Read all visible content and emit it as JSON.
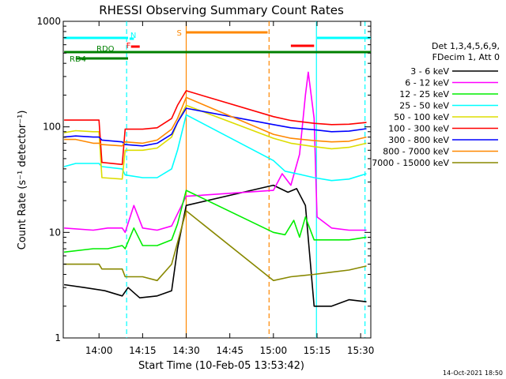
{
  "chart_data": {
    "type": "line",
    "title": "RHESSI Observing Summary Count Rates",
    "xlabel": "Start Time (10-Feb-05 13:53:42)",
    "ylabel": "Count Rate (s⁻¹ detector⁻¹)",
    "x_ticks": [
      "14:00",
      "14:15",
      "14:30",
      "14:45",
      "15:00",
      "15:15",
      "15:30"
    ],
    "x_tick_minutes": [
      366,
      381,
      396,
      411,
      426,
      441,
      456
    ],
    "xlim_minutes": [
      353.7,
      459.5
    ],
    "y_ticks": [
      "1",
      "10",
      "100",
      "1000"
    ],
    "ylim": [
      1,
      1000
    ],
    "yscale": "log",
    "legend_header": [
      "Det 1,3,4,5,6,9,",
      "FDecim 1, Att 0"
    ],
    "timestamp": "14-Oct-2021 18:50",
    "legend_position": "right",
    "series": [
      {
        "name": "3 - 6 keV",
        "color": "#000000",
        "points": [
          [
            354,
            3.2
          ],
          [
            361,
            3.0
          ],
          [
            368,
            2.8
          ],
          [
            374,
            2.5
          ],
          [
            376,
            3.0
          ],
          [
            380,
            2.4
          ],
          [
            386,
            2.5
          ],
          [
            391,
            2.8
          ],
          [
            393,
            7
          ],
          [
            396,
            18
          ],
          [
            426,
            28
          ],
          [
            431,
            24
          ],
          [
            434,
            26
          ],
          [
            437,
            18
          ],
          [
            440,
            2.0
          ],
          [
            446,
            2.0
          ],
          [
            452,
            2.3
          ],
          [
            458,
            2.2
          ]
        ]
      },
      {
        "name": "6 - 12 keV",
        "color": "#ff00ff",
        "points": [
          [
            354,
            11
          ],
          [
            364,
            10.5
          ],
          [
            369,
            11
          ],
          [
            374,
            11
          ],
          [
            375,
            10
          ],
          [
            378,
            18
          ],
          [
            381,
            11
          ],
          [
            386,
            10.5
          ],
          [
            391,
            11.5
          ],
          [
            393,
            15
          ],
          [
            396,
            22
          ],
          [
            426,
            25
          ],
          [
            429,
            36
          ],
          [
            432,
            28
          ],
          [
            435,
            55
          ],
          [
            437,
            200
          ],
          [
            438,
            330
          ],
          [
            440,
            120
          ],
          [
            441,
            14
          ],
          [
            446,
            11
          ],
          [
            452,
            10.5
          ],
          [
            458,
            10.5
          ]
        ]
      },
      {
        "name": "12 - 25 keV",
        "color": "#00ee00",
        "points": [
          [
            354,
            6.5
          ],
          [
            364,
            7
          ],
          [
            369,
            7
          ],
          [
            374,
            7.5
          ],
          [
            375,
            7
          ],
          [
            378,
            11
          ],
          [
            381,
            7.5
          ],
          [
            386,
            7.5
          ],
          [
            391,
            8.5
          ],
          [
            393,
            12
          ],
          [
            396,
            25
          ],
          [
            426,
            10
          ],
          [
            430,
            9.5
          ],
          [
            433,
            13
          ],
          [
            435,
            9
          ],
          [
            437,
            14
          ],
          [
            440,
            8.5
          ],
          [
            446,
            8.5
          ],
          [
            452,
            8.5
          ],
          [
            458,
            9
          ]
        ]
      },
      {
        "name": "25 - 50 keV",
        "color": "#00ffff",
        "points": [
          [
            354,
            42
          ],
          [
            358,
            45
          ],
          [
            364,
            45
          ],
          [
            366,
            45
          ],
          [
            367,
            42
          ],
          [
            374,
            40
          ],
          [
            375,
            35
          ],
          [
            381,
            33
          ],
          [
            386,
            33
          ],
          [
            391,
            40
          ],
          [
            393,
            60
          ],
          [
            396,
            130
          ],
          [
            426,
            48
          ],
          [
            430,
            38
          ],
          [
            436,
            35
          ],
          [
            440,
            33
          ],
          [
            446,
            31
          ],
          [
            452,
            32
          ],
          [
            458,
            36
          ]
        ]
      },
      {
        "name": "50 - 100 keV",
        "color": "#dddd00",
        "points": [
          [
            354,
            88
          ],
          [
            358,
            92
          ],
          [
            364,
            90
          ],
          [
            366,
            90
          ],
          [
            367,
            33
          ],
          [
            374,
            32
          ],
          [
            375,
            60
          ],
          [
            381,
            60
          ],
          [
            386,
            63
          ],
          [
            391,
            80
          ],
          [
            393,
            110
          ],
          [
            396,
            160
          ],
          [
            426,
            78
          ],
          [
            432,
            70
          ],
          [
            440,
            65
          ],
          [
            446,
            62
          ],
          [
            452,
            64
          ],
          [
            458,
            70
          ]
        ]
      },
      {
        "name": "100 - 300 keV",
        "color": "#ff0000",
        "points": [
          [
            354,
            116
          ],
          [
            358,
            116
          ],
          [
            366,
            116
          ],
          [
            367,
            46
          ],
          [
            374,
            44
          ],
          [
            375,
            95
          ],
          [
            381,
            95
          ],
          [
            386,
            98
          ],
          [
            391,
            120
          ],
          [
            393,
            160
          ],
          [
            396,
            220
          ],
          [
            426,
            125
          ],
          [
            432,
            115
          ],
          [
            440,
            108
          ],
          [
            446,
            105
          ],
          [
            452,
            106
          ],
          [
            458,
            110
          ]
        ]
      },
      {
        "name": "300 - 800 keV",
        "color": "#0000ff",
        "points": [
          [
            354,
            80
          ],
          [
            358,
            82
          ],
          [
            364,
            80
          ],
          [
            366,
            80
          ],
          [
            367,
            75
          ],
          [
            374,
            72
          ],
          [
            375,
            68
          ],
          [
            381,
            66
          ],
          [
            386,
            70
          ],
          [
            391,
            85
          ],
          [
            393,
            110
          ],
          [
            396,
            150
          ],
          [
            426,
            105
          ],
          [
            432,
            98
          ],
          [
            440,
            94
          ],
          [
            446,
            90
          ],
          [
            452,
            91
          ],
          [
            458,
            96
          ]
        ]
      },
      {
        "name": "800 - 7000 keV",
        "color": "#ff8800",
        "points": [
          [
            354,
            76
          ],
          [
            358,
            76
          ],
          [
            364,
            70
          ],
          [
            366,
            70
          ],
          [
            367,
            68
          ],
          [
            374,
            66
          ],
          [
            375,
            72
          ],
          [
            381,
            70
          ],
          [
            386,
            75
          ],
          [
            391,
            95
          ],
          [
            393,
            120
          ],
          [
            396,
            190
          ],
          [
            426,
            85
          ],
          [
            432,
            78
          ],
          [
            440,
            74
          ],
          [
            446,
            72
          ],
          [
            452,
            73
          ],
          [
            458,
            80
          ]
        ]
      },
      {
        "name": "7000 - 15000 keV",
        "color": "#888800",
        "points": [
          [
            354,
            5.0
          ],
          [
            364,
            5.0
          ],
          [
            366,
            5.0
          ],
          [
            367,
            4.5
          ],
          [
            374,
            4.5
          ],
          [
            375,
            3.8
          ],
          [
            381,
            3.8
          ],
          [
            386,
            3.5
          ],
          [
            391,
            5
          ],
          [
            393,
            8
          ],
          [
            396,
            16
          ],
          [
            426,
            3.5
          ],
          [
            432,
            3.8
          ],
          [
            440,
            4.0
          ],
          [
            446,
            4.2
          ],
          [
            452,
            4.4
          ],
          [
            458,
            4.8
          ]
        ]
      }
    ],
    "status_bars": [
      {
        "label": "",
        "color": "#00ffff",
        "x_start": 354,
        "x_end": 376
      },
      {
        "label": "",
        "color": "#00ffff",
        "x_start": 441,
        "x_end": 459.5
      },
      {
        "label": "N",
        "color": "#00ffff",
        "x_start": 376.5,
        "x_end": 378
      },
      {
        "label": "F",
        "color": "#ff0000",
        "x_start": 377,
        "x_end": 380
      },
      {
        "label": "S",
        "color": "#ff8800",
        "x_start": 396,
        "x_end": 424
      },
      {
        "label": "",
        "color": "#ff0000",
        "x_start": 432,
        "x_end": 440
      },
      {
        "label": "RDO",
        "color": "#008000",
        "x_start": 354,
        "x_end": 459.5
      },
      {
        "label": "RD4",
        "color": "#008000",
        "x_start": 358,
        "x_end": 376
      }
    ],
    "vertical_markers": [
      {
        "color": "#00ffff",
        "style": "dashed",
        "x": 375.5
      },
      {
        "color": "#ff8800",
        "style": "solid",
        "x": 396
      },
      {
        "color": "#ff8800",
        "style": "dashed",
        "x": 424.5
      },
      {
        "color": "#00ffff",
        "style": "solid",
        "x": 440.8
      },
      {
        "color": "#00ffff",
        "style": "dashed",
        "x": 457.5
      }
    ]
  }
}
